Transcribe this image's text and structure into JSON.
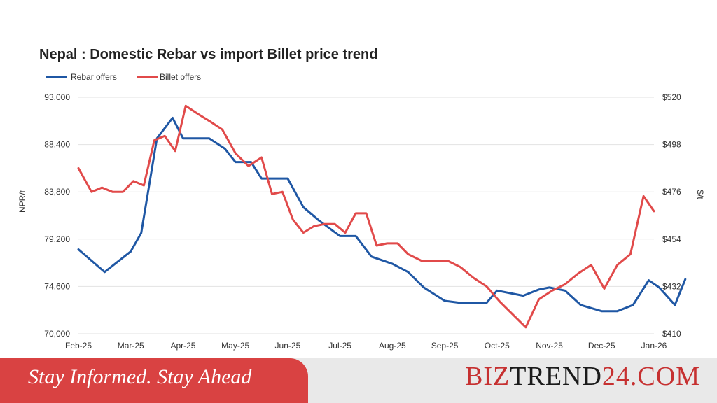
{
  "chart_data": {
    "type": "line",
    "title": "Nepal : Domestic Rebar vs import Billet price trend",
    "legend_placement": "top-left",
    "ylabel_left": "NPR/t",
    "ylabel_right": "$/t",
    "x_tick_labels": [
      "Feb-25",
      "Mar-25",
      "Apr-25",
      "May-25",
      "Jun-25",
      "Jul-25",
      "Aug-25",
      "Sep-25",
      "Oct-25",
      "Nov-25",
      "Dec-25",
      "Jan-26"
    ],
    "y_left_ticks": [
      "70,000",
      "74,600",
      "79,200",
      "83,800",
      "88,400",
      "93,000"
    ],
    "y_left_range": [
      70000,
      93000
    ],
    "y_right_ticks": [
      "$410",
      "$432",
      "$454",
      "$476",
      "$498",
      "$520"
    ],
    "y_right_range": [
      410,
      520
    ],
    "grid": true,
    "x": [
      0,
      0.5,
      1,
      1.5,
      2,
      2.3,
      2.5,
      2.7,
      3,
      3.3,
      3.5,
      3.8,
      4,
      4.3,
      4.6,
      5,
      5.3,
      5.6,
      6,
      6.3,
      6.6,
      7,
      7.3,
      7.6,
      7.8,
      8,
      8.3,
      8.6,
      9,
      9.3,
      9.6,
      9.8,
      10,
      10.3,
      10.6,
      10.9,
      11.2,
      11.4,
      11.6
    ],
    "series": [
      {
        "name": "Rebar offers",
        "axis": "left",
        "color": "#1f57a4",
        "values": [
          78200,
          76000,
          78000,
          79800,
          89000,
          91000,
          89000,
          89000,
          89000,
          88000,
          86700,
          86700,
          85100,
          85100,
          85100,
          82300,
          81000,
          79500,
          79500,
          77500,
          76800,
          76000,
          74500,
          73200,
          73000,
          73000,
          73000,
          74200,
          73700,
          74300,
          74500,
          74200,
          72800,
          72500,
          72200,
          72200,
          72800,
          75200,
          74500,
          72800,
          75300
        ],
        "x": [
          0,
          0.5,
          1,
          1.2,
          1.5,
          1.8,
          2,
          2.25,
          2.5,
          2.8,
          3,
          3.3,
          3.5,
          3.8,
          4,
          4.3,
          4.6,
          5,
          5.3,
          5.6,
          6,
          6.3,
          6.6,
          7,
          7.3,
          7.6,
          7.8,
          8,
          8.5,
          8.8,
          9,
          9.3,
          9.6,
          9.8,
          10,
          10.3,
          10.6,
          10.9,
          11.1,
          11.4,
          11.6
        ]
      },
      {
        "name": "Billet offers",
        "axis": "right",
        "color": "#e14a4a",
        "values": [
          487,
          476,
          478,
          476,
          476,
          481,
          479,
          500,
          502,
          495,
          516,
          512,
          509,
          505,
          494,
          488,
          492,
          475,
          476,
          463,
          457,
          460,
          461,
          461,
          457,
          466,
          466,
          451,
          452,
          452,
          447,
          444,
          444,
          444,
          441,
          436,
          432,
          425,
          419,
          413,
          426,
          430,
          433,
          438,
          442,
          431,
          442,
          447,
          474,
          467
        ],
        "x": [
          0,
          0.25,
          0.45,
          0.65,
          0.85,
          1.05,
          1.25,
          1.45,
          1.65,
          1.85,
          2.05,
          2.3,
          2.5,
          2.75,
          3,
          3.25,
          3.5,
          3.7,
          3.9,
          4.1,
          4.3,
          4.5,
          4.7,
          4.9,
          5.1,
          5.3,
          5.5,
          5.7,
          5.9,
          6.1,
          6.3,
          6.55,
          6.8,
          7.05,
          7.3,
          7.55,
          7.8,
          8.05,
          8.3,
          8.55,
          8.8,
          9.05,
          9.3,
          9.55,
          9.8,
          10.05,
          10.3,
          10.55,
          10.8,
          11.0
        ]
      }
    ]
  },
  "footer": {
    "tagline": "Stay Informed. Stay Ahead",
    "brand_part1": "BIZ",
    "brand_part2": "TREND",
    "brand_part3": "24.COM"
  }
}
